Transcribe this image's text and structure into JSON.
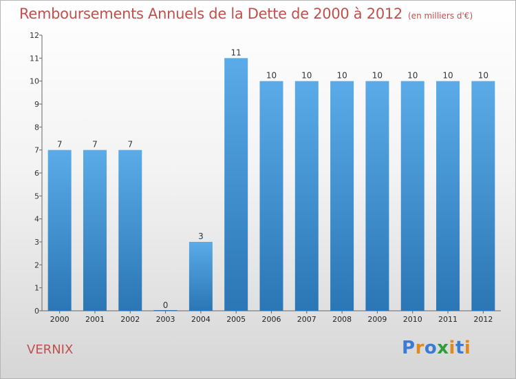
{
  "chart_data": {
    "type": "bar",
    "title": "Remboursements Annuels de la Dette de 2000 à 2012",
    "subtitle": "(en milliers d'€)",
    "categories": [
      "2000",
      "2001",
      "2002",
      "2003",
      "2004",
      "2005",
      "2006",
      "2007",
      "2008",
      "2009",
      "2010",
      "2011",
      "2012"
    ],
    "values": [
      7,
      7,
      7,
      0,
      3,
      11,
      10,
      10,
      10,
      10,
      10,
      10,
      10
    ],
    "yticks": [
      "0",
      "1",
      "2",
      "3",
      "4",
      "5",
      "6",
      "7",
      "8",
      "9",
      "10",
      "11",
      "12"
    ],
    "ylim": [
      0,
      12
    ],
    "xlabel": "",
    "ylabel": "",
    "grid": false,
    "bar_color_top": "#5aabe8",
    "bar_color_bottom": "#2b76b5"
  },
  "footer": {
    "commune": "VERNIX",
    "logo": [
      "P",
      "r",
      "o",
      "x",
      "i",
      "t",
      "i"
    ]
  },
  "colors": {
    "title": "#c0504d",
    "logo": [
      "#3a7bd5",
      "#e08a1e",
      "#3a7bd5",
      "#2e9e3b",
      "#e08a1e",
      "#3a7bd5",
      "#e08a1e"
    ]
  }
}
